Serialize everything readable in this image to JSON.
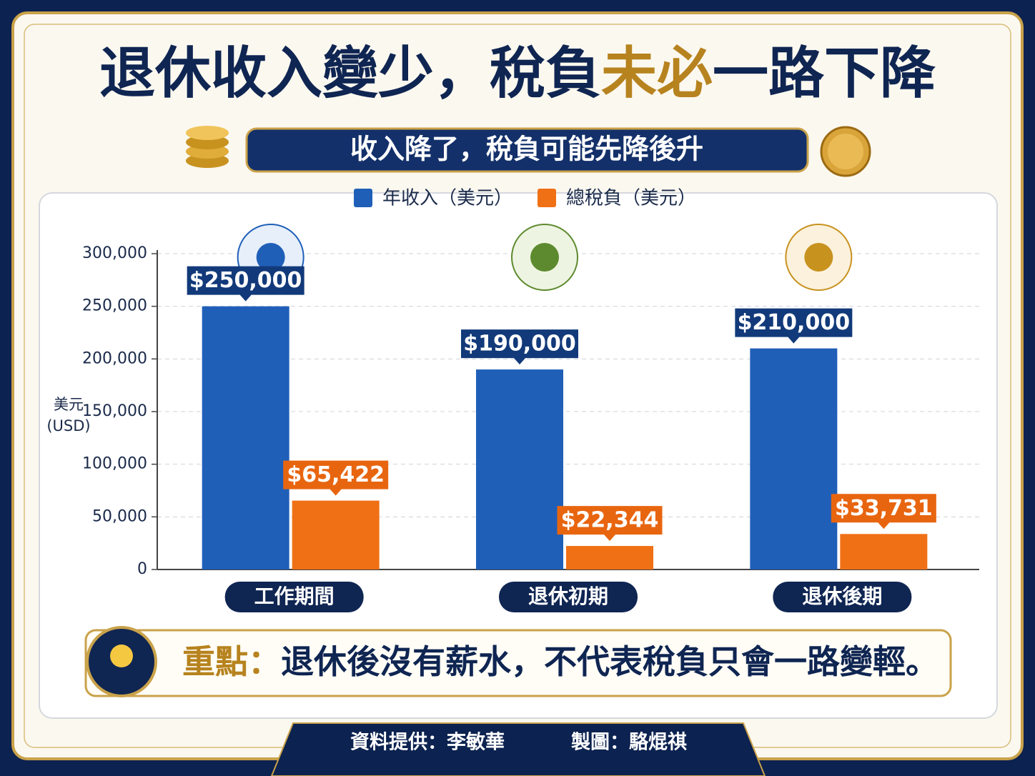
{
  "title_parts": [
    "退休收入變少，稅負",
    "未必",
    "一路下降"
  ],
  "subtitle": "收入降了，稅負可能先降後升",
  "chart_data": {
    "type": "bar",
    "categories": [
      "工作期間",
      "退休初期",
      "退休後期"
    ],
    "series": [
      {
        "name": "年收入（美元）",
        "color": "#1f5fb8",
        "values": [
          250000,
          190000,
          210000
        ],
        "value_labels": [
          "$250,000",
          "$190,000",
          "$210,000"
        ],
        "label_color": "#123a7a"
      },
      {
        "name": "總稅負（美元）",
        "color": "#f07015",
        "values": [
          65422,
          22344,
          33731
        ],
        "value_labels": [
          "$65,422",
          "$22,344",
          "$33,731"
        ],
        "label_color": "#e8650f"
      }
    ],
    "ylabel": [
      "美元",
      "(USD)"
    ],
    "ylim": [
      0,
      300000
    ],
    "yticks": [
      0,
      {
        "value": 50000,
        "label": "50,000"
      },
      {
        "value": 100000,
        "label": "100,000"
      },
      {
        "value": 150000,
        "label": "150,000"
      },
      {
        "value": 200000,
        "label": "200,000"
      },
      {
        "value": 250000,
        "label": "250,000"
      },
      {
        "value": 300000,
        "label": "300,000"
      }
    ],
    "grid": true,
    "legend": "top"
  },
  "note": {
    "label": "重點：",
    "text": "退休後沒有薪水，不代表稅負只會一路變輕。"
  },
  "footer": {
    "source": "資料提供：李敏華",
    "credit": "製圖：駱焜祺"
  }
}
